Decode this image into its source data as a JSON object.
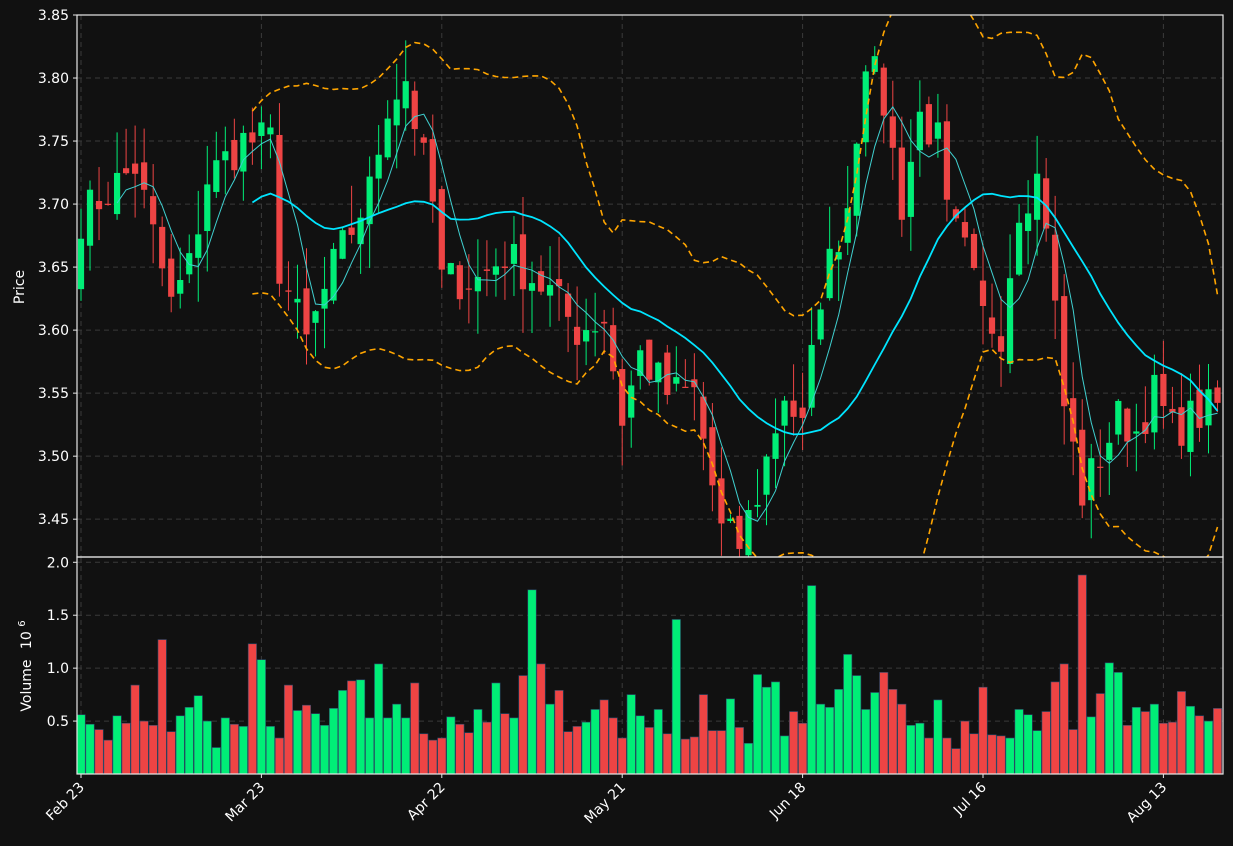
{
  "chart_data": {
    "type": "candlestick",
    "price_panel": {
      "ylabel": "Price",
      "ylim": [
        3.42,
        3.85
      ],
      "yticks": [
        "3.45",
        "3.50",
        "3.55",
        "3.60",
        "3.65",
        "3.70",
        "3.75",
        "3.80",
        "3.85"
      ]
    },
    "volume_panel": {
      "ylabel": "Volume",
      "ylabel_exponent": "10",
      "ylabel_power": "6",
      "ylim": [
        0.0,
        2.05
      ],
      "yticks": [
        "0.5",
        "1.0",
        "1.5",
        "2.0"
      ]
    },
    "x_ticks": [
      {
        "label": "Feb 23",
        "index": 0
      },
      {
        "label": "Mar 23",
        "index": 20
      },
      {
        "label": "Apr 22",
        "index": 40
      },
      {
        "label": "May 21",
        "index": 60
      },
      {
        "label": "Jun 18",
        "index": 80
      },
      {
        "label": "Jul 16",
        "index": 100
      },
      {
        "label": "Aug 13",
        "index": 120
      }
    ],
    "n_bars": 127,
    "colors": {
      "up": "#00ee77",
      "down": "#ee4444",
      "ma_slow": "#00e5ff",
      "ma_fast": "#40d0d0",
      "bands": "#ffa500",
      "grid": "#3a3a3a",
      "background": "#111111"
    },
    "key_points": [
      [
        0,
        3.69
      ],
      [
        6,
        3.73
      ],
      [
        10,
        3.62
      ],
      [
        12,
        3.65
      ],
      [
        14,
        3.72
      ],
      [
        18,
        3.75
      ],
      [
        21,
        3.75
      ],
      [
        22,
        3.65
      ],
      [
        25,
        3.59
      ],
      [
        28,
        3.65
      ],
      [
        32,
        3.71
      ],
      [
        34,
        3.78
      ],
      [
        36,
        3.8
      ],
      [
        39,
        3.7
      ],
      [
        40,
        3.64
      ],
      [
        44,
        3.64
      ],
      [
        47,
        3.66
      ],
      [
        52,
        3.63
      ],
      [
        55,
        3.6
      ],
      [
        58,
        3.61
      ],
      [
        60,
        3.53
      ],
      [
        62,
        3.58
      ],
      [
        65,
        3.55
      ],
      [
        68,
        3.55
      ],
      [
        71,
        3.44
      ],
      [
        73,
        3.43
      ],
      [
        75,
        3.47
      ],
      [
        78,
        3.55
      ],
      [
        80,
        3.52
      ],
      [
        82,
        3.63
      ],
      [
        85,
        3.7
      ],
      [
        87,
        3.82
      ],
      [
        89,
        3.78
      ],
      [
        91,
        3.7
      ],
      [
        93,
        3.77
      ],
      [
        95,
        3.75
      ],
      [
        96,
        3.69
      ],
      [
        98,
        3.66
      ],
      [
        100,
        3.61
      ],
      [
        102,
        3.6
      ],
      [
        104,
        3.7
      ],
      [
        106,
        3.72
      ],
      [
        107,
        3.69
      ],
      [
        109,
        3.54
      ],
      [
        111,
        3.47
      ],
      [
        113,
        3.5
      ],
      [
        115,
        3.53
      ],
      [
        117,
        3.52
      ],
      [
        119,
        3.55
      ],
      [
        121,
        3.52
      ],
      [
        123,
        3.53
      ],
      [
        126,
        3.54
      ]
    ],
    "volume_profile": [
      0.56,
      0.47,
      0.42,
      0.32,
      0.55,
      0.48,
      0.84,
      0.5,
      0.46,
      1.27,
      0.4,
      0.55,
      0.63,
      0.74,
      0.5,
      0.25,
      0.53,
      0.47,
      0.45,
      1.23,
      1.08,
      0.45,
      0.34,
      0.84,
      0.6,
      0.65,
      0.57,
      0.46,
      0.62,
      0.79,
      0.88,
      0.89,
      0.53,
      1.04,
      0.53,
      0.66,
      0.53,
      0.86,
      0.38,
      0.32,
      0.34,
      0.54,
      0.47,
      0.39,
      0.61,
      0.49,
      0.86,
      0.57,
      0.53,
      0.93,
      1.74,
      1.04,
      0.66,
      0.79,
      0.4,
      0.45,
      0.49,
      0.61,
      0.7,
      0.53,
      0.34,
      0.75,
      0.55,
      0.44,
      0.61,
      0.38,
      1.46,
      0.33,
      0.35,
      0.75,
      0.41,
      0.41,
      0.71,
      0.44,
      0.29,
      0.94,
      0.82,
      0.87,
      0.36,
      0.59,
      0.48,
      1.78,
      0.66,
      0.63,
      0.8,
      1.13,
      0.93,
      0.61,
      0.77,
      0.96,
      0.8,
      0.66,
      0.46,
      0.48,
      0.34,
      0.7,
      0.34,
      0.24,
      0.5,
      0.38,
      0.82,
      0.37,
      0.36,
      0.34,
      0.61,
      0.56,
      0.41,
      0.59,
      0.87,
      1.04,
      0.42,
      1.88,
      0.54,
      0.76,
      1.05,
      0.96,
      0.46,
      0.63,
      0.59,
      0.66,
      0.48,
      0.49,
      0.78,
      0.64,
      0.55,
      0.5,
      0.62
    ],
    "seed": 7
  }
}
